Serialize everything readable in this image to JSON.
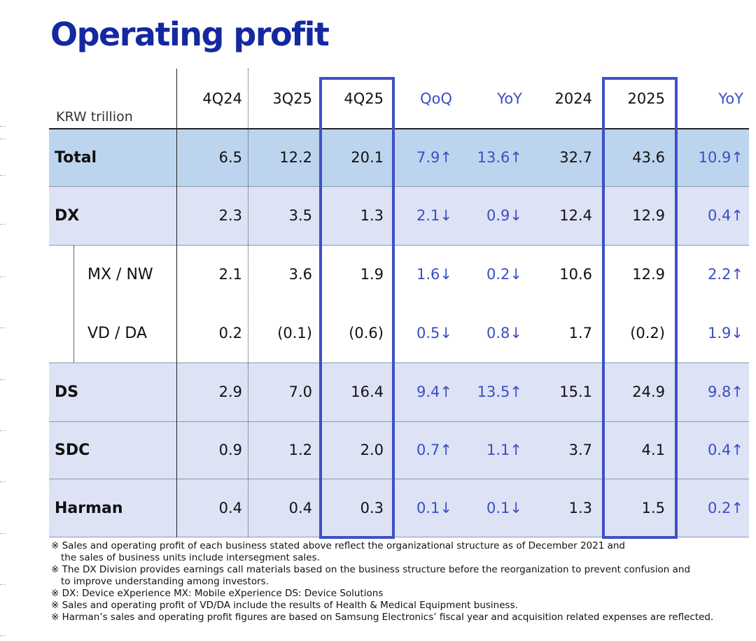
{
  "title": "Operating profit",
  "unit_label": "KRW trillion",
  "columns": [
    "4Q24",
    "3Q25",
    "4Q25",
    "QoQ",
    "YoY",
    "2024",
    "2025",
    "YoY"
  ],
  "rows": [
    {
      "label": "Total",
      "values": [
        "6.5",
        "12.2",
        "20.1",
        "7.9↑",
        "13.6↑",
        "32.7",
        "43.6",
        "10.9↑"
      ]
    },
    {
      "label": "DX",
      "values": [
        "2.3",
        "3.5",
        "1.3",
        "2.1↓",
        "0.9↓",
        "12.4",
        "12.9",
        "0.4↑"
      ]
    },
    {
      "label": "MX / NW",
      "values": [
        "2.1",
        "3.6",
        "1.9",
        "1.6↓",
        "0.2↓",
        "10.6",
        "12.9",
        "2.2↑"
      ]
    },
    {
      "label": "VD / DA",
      "values": [
        "0.2",
        "(0.1)",
        "(0.6)",
        "0.5↓",
        "0.8↓",
        "1.7",
        "(0.2)",
        "1.9↓"
      ]
    },
    {
      "label": "DS",
      "values": [
        "2.9",
        "7.0",
        "16.4",
        "9.4↑",
        "13.5↑",
        "15.1",
        "24.9",
        "9.8↑"
      ]
    },
    {
      "label": "SDC",
      "values": [
        "0.9",
        "1.2",
        "2.0",
        "0.7↑",
        "1.1↑",
        "3.7",
        "4.1",
        "0.4↑"
      ]
    },
    {
      "label": "Harman",
      "values": [
        "0.4",
        "0.4",
        "0.3",
        "0.1↓",
        "0.1↓",
        "1.3",
        "1.5",
        "0.2↑"
      ]
    }
  ],
  "colors": {
    "title": "#1428a0",
    "highlight_border": "#3d51c6",
    "change_text": "#3a4fc4",
    "total_band": "#bdd4ee",
    "segment_band": "#dde2f5"
  },
  "notes": [
    "※ Sales and operating profit of each business stated above reflect the organizational structure  as of December 2021 and",
    "the sales of business units include intersegment sales.",
    "※ The DX Division provides earnings call materials based on the business structure before the reorganization to prevent confusion and",
    "to improve understanding among investors.",
    "※ DX: Device eXperience MX: Mobile eXperience DS: Device Solutions",
    "※ Sales and operating profit of VD/DA include the results of Health & Medical Equipment business.",
    "※ Harman’s sales and operating profit figures are based on Samsung Electronics’ fiscal year and acquisition related expenses  are reflected."
  ]
}
